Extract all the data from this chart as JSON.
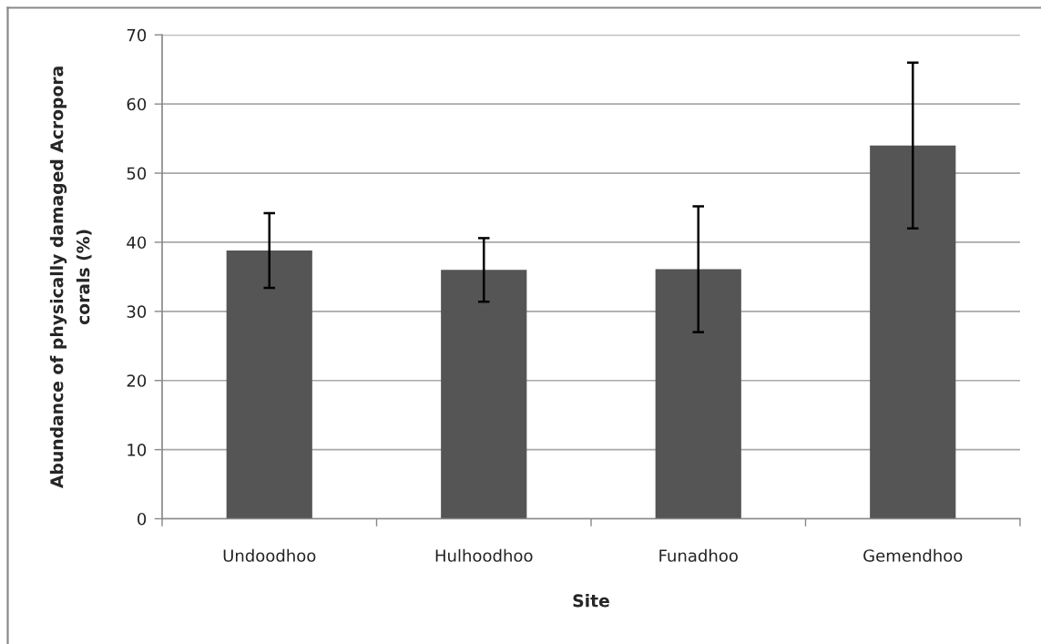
{
  "chart_data": {
    "type": "bar",
    "xlabel": "Site",
    "ylabel": "Abundance of physically damaged Acropora corals (%)",
    "categories": [
      "Undoodhoo",
      "Hulhoodhoo",
      "Funadhoo",
      "Gemendhoo"
    ],
    "values": [
      38.8,
      36.0,
      36.1,
      54.0
    ],
    "errors": [
      5.4,
      4.6,
      9.1,
      12.0
    ],
    "color": "#555555",
    "ylim": [
      0,
      70
    ],
    "yticks": [
      0,
      10,
      20,
      30,
      40,
      50,
      60,
      70
    ],
    "grid": "y"
  }
}
